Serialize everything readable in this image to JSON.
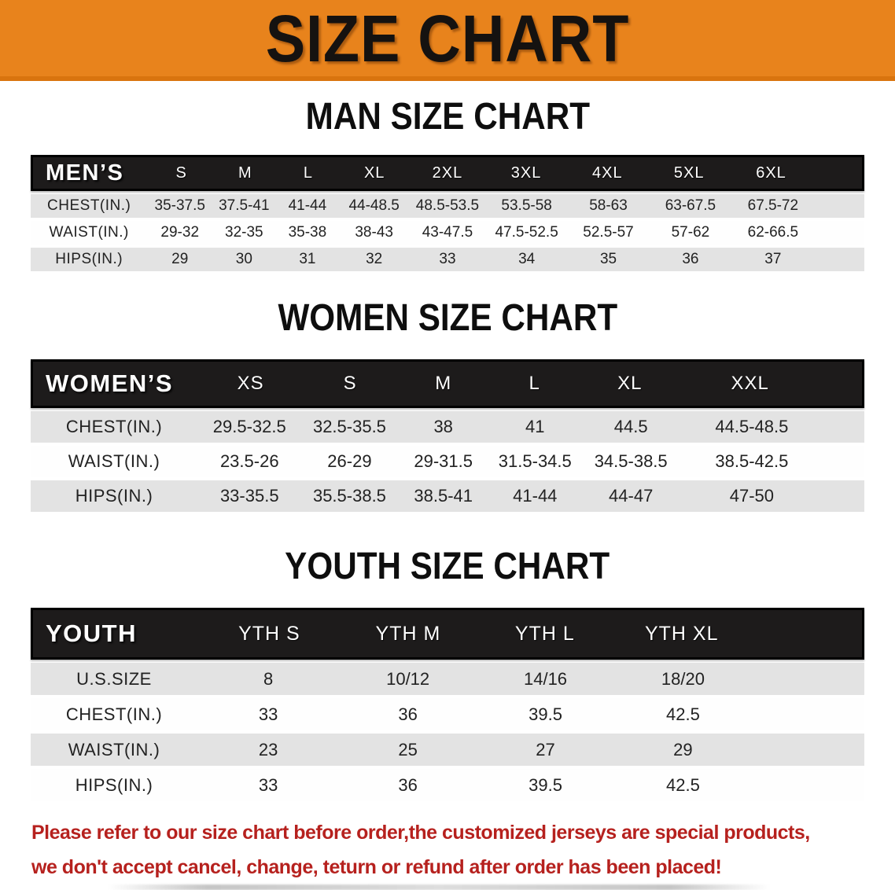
{
  "banner": {
    "title": "SIZE CHART",
    "bg_color": "#E8831C",
    "text_color": "#151210"
  },
  "sections": [
    {
      "title": "MAN SIZE CHART",
      "table": {
        "header_label": "MEN’S",
        "columns": [
          "S",
          "M",
          "L",
          "XL",
          "2XL",
          "3XL",
          "4XL",
          "5XL",
          "6XL"
        ],
        "rows": [
          {
            "label": "CHEST(IN.)",
            "values": [
              "35-37.5",
              "37.5-41",
              "41-44",
              "44-48.5",
              "48.5-53.5",
              "53.5-58",
              "58-63",
              "63-67.5",
              "67.5-72"
            ]
          },
          {
            "label": "WAIST(IN.)",
            "values": [
              "29-32",
              "32-35",
              "35-38",
              "38-43",
              "43-47.5",
              "47.5-52.5",
              "52.5-57",
              "57-62",
              "62-66.5"
            ]
          },
          {
            "label": "HIPS(IN.)",
            "values": [
              "29",
              "30",
              "31",
              "32",
              "33",
              "34",
              "35",
              "36",
              "37"
            ]
          }
        ]
      }
    },
    {
      "title": "WOMEN SIZE CHART",
      "table": {
        "header_label": "WOMEN’S",
        "columns": [
          "XS",
          "S",
          "M",
          "L",
          "XL",
          "XXL"
        ],
        "rows": [
          {
            "label": "CHEST(IN.)",
            "values": [
              "29.5-32.5",
              "32.5-35.5",
              "38",
              "41",
              "44.5",
              "44.5-48.5"
            ]
          },
          {
            "label": "WAIST(IN.)",
            "values": [
              "23.5-26",
              "26-29",
              "29-31.5",
              "31.5-34.5",
              "34.5-38.5",
              "38.5-42.5"
            ]
          },
          {
            "label": "HIPS(IN.)",
            "values": [
              "33-35.5",
              "35.5-38.5",
              "38.5-41",
              "41-44",
              "44-47",
              "47-50"
            ]
          }
        ]
      }
    },
    {
      "title": "YOUTH SIZE CHART",
      "table": {
        "header_label": "YOUTH",
        "columns": [
          "YTH S",
          "YTH M",
          "YTH L",
          "YTH XL"
        ],
        "rows": [
          {
            "label": "U.S.SIZE",
            "values": [
              "8",
              "10/12",
              "14/16",
              "18/20"
            ]
          },
          {
            "label": "CHEST(IN.)",
            "values": [
              "33",
              "36",
              "39.5",
              "42.5"
            ]
          },
          {
            "label": "WAIST(IN.)",
            "values": [
              "23",
              "25",
              "27",
              "29"
            ]
          },
          {
            "label": "HIPS(IN.)",
            "values": [
              "33",
              "36",
              "39.5",
              "42.5"
            ]
          }
        ]
      }
    }
  ],
  "footer_note": {
    "lines": [
      "Please refer to our size chart before order,the customized jerseys are special products,",
      "we don't accept cancel, change, teturn or refund after order has been placed!"
    ],
    "color": "#B6211E"
  },
  "colors": {
    "banner_orange": "#E8831C",
    "header_bar_black": "#1D1B1B",
    "row_gray": "#E3E3E3",
    "note_red": "#B6211E"
  }
}
